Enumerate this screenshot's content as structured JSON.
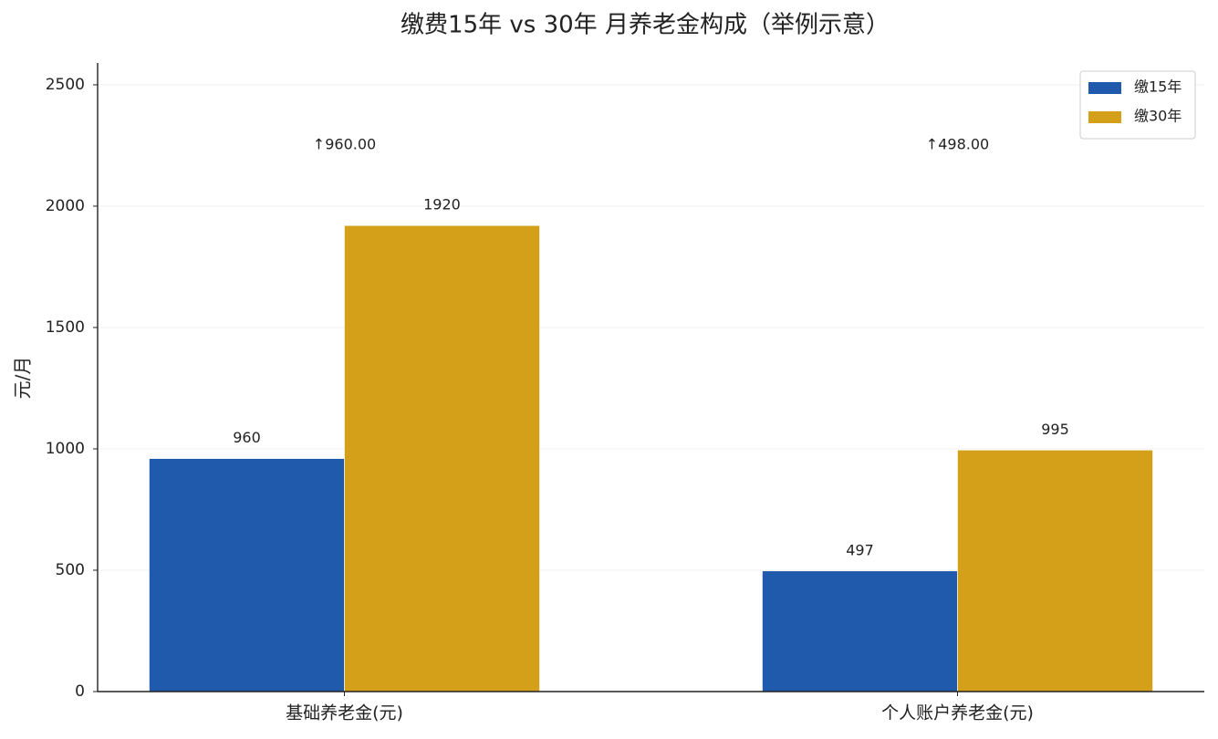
{
  "chart_data": {
    "type": "bar",
    "title": "缴费15年 vs 30年 月养老金构成（举例示意）",
    "y_label": "元/月",
    "categories": [
      "基础养老金(元)",
      "个人账户养老金(元)"
    ],
    "series": [
      {
        "name": "缴15年",
        "color": "#1f5aad",
        "values": [
          960,
          497
        ]
      },
      {
        "name": "缴30年",
        "color": "#d4a01a",
        "values": [
          1920,
          995
        ]
      }
    ],
    "annotations": [
      {
        "text": "↑960.00",
        "color": "#2ca24f"
      },
      {
        "text": "↑498.00",
        "color": "#2ca24f"
      }
    ],
    "ylim": [
      0,
      2590
    ],
    "yticks": [
      0,
      500,
      1000,
      1500,
      2000,
      2500
    ],
    "grid": true,
    "legend": "upper right"
  }
}
